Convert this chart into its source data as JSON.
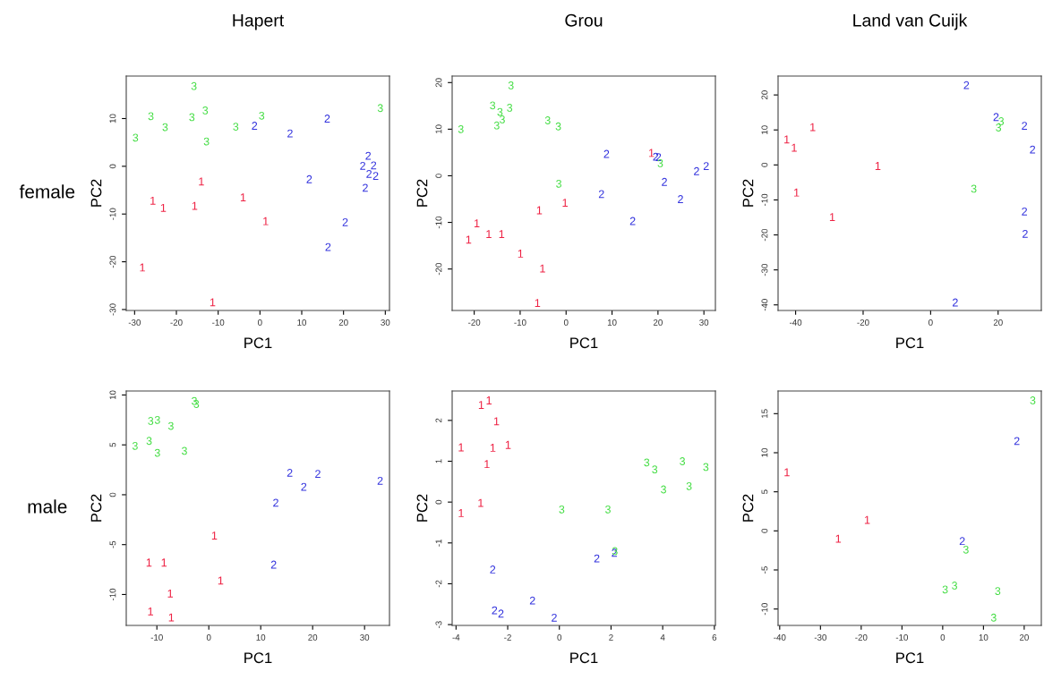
{
  "chart_data": [
    {
      "type": "scatter",
      "title": "Hapert",
      "xlabel": "PC1",
      "ylabel": "PC2",
      "annotations": [
        "female"
      ],
      "xlim": [
        -32,
        31
      ],
      "ylim": [
        -30.2,
        18.9
      ],
      "xticks": [
        -30,
        -20,
        -10,
        0,
        10,
        20,
        30
      ],
      "yticks": [
        -30,
        -20,
        -10,
        0,
        10
      ],
      "series": [
        {
          "color": "#ee2244",
          "x": [
            -14.0,
            -4.0,
            -25.6,
            -23.1,
            -15.6,
            1.4,
            -28.1,
            -11.3
          ],
          "values": [
            -3.2,
            -6.5,
            -7.2,
            -8.7,
            -8.3,
            -11.5,
            -21.2,
            -28.5
          ]
        },
        {
          "color": "#3333dd",
          "x": [
            -1.3,
            7.2,
            16.1,
            25.9,
            24.6,
            27.2,
            26.1,
            27.7,
            25.2,
            11.8,
            20.4,
            16.3
          ],
          "values": [
            8.5,
            6.9,
            10.0,
            2.2,
            0.1,
            0.2,
            -1.6,
            -2.0,
            -4.5,
            -2.7,
            -11.7,
            -16.9
          ]
        },
        {
          "color": "#44dd44",
          "x": [
            -15.8,
            -26.1,
            -22.7,
            -29.8,
            -16.3,
            -13.1,
            -12.8,
            -5.8,
            0.4,
            28.8
          ],
          "values": [
            16.8,
            10.5,
            8.2,
            6.0,
            10.3,
            11.7,
            5.2,
            8.3,
            10.6,
            12.2
          ]
        }
      ]
    },
    {
      "type": "scatter",
      "title": "Grou",
      "xlabel": "PC1",
      "ylabel": "PC2",
      "xlim": [
        -24.8,
        32.5
      ],
      "ylim": [
        -28.9,
        21.4
      ],
      "xticks": [
        -20,
        -10,
        0,
        10,
        20,
        30
      ],
      "yticks": [
        -20,
        -10,
        0,
        10,
        20
      ],
      "series": [
        {
          "color": "#ee2244",
          "x": [
            18.6,
            -0.2,
            -5.8,
            -19.4,
            -21.2,
            -16.8,
            -14.0,
            -9.9,
            -5.1,
            -6.2
          ],
          "values": [
            4.9,
            -5.8,
            -7.4,
            -10.2,
            -13.7,
            -12.5,
            -12.5,
            -16.7,
            -19.9,
            -27.3
          ]
        },
        {
          "color": "#3333dd",
          "x": [
            8.8,
            19.5,
            20.1,
            28.4,
            30.5,
            21.4,
            24.9,
            7.7,
            14.5
          ],
          "values": [
            4.7,
            4.1,
            4.0,
            1.0,
            2.1,
            -1.3,
            -5.0,
            -3.9,
            -9.7
          ]
        },
        {
          "color": "#44dd44",
          "x": [
            -22.9,
            -12.0,
            -16.0,
            -14.4,
            -13.9,
            -15.1,
            -12.3,
            -4.0,
            -1.7,
            20.5,
            -1.6
          ],
          "values": [
            10.0,
            19.4,
            15.1,
            13.7,
            12.1,
            10.8,
            14.6,
            11.9,
            10.6,
            2.7,
            -1.7
          ]
        }
      ]
    },
    {
      "type": "scatter",
      "title": "Land van Cuijk",
      "xlabel": "PC1",
      "ylabel": "PC2",
      "xlim": [
        -45.2,
        32.8
      ],
      "ylim": [
        -41.6,
        25.4
      ],
      "xticks": [
        -40,
        -20,
        0,
        20
      ],
      "yticks": [
        -40,
        -30,
        -20,
        -10,
        0,
        10,
        20
      ],
      "series": [
        {
          "color": "#ee2244",
          "x": [
            -42.6,
            -40.4,
            -34.9,
            -15.6,
            -39.7,
            -29.1
          ],
          "values": [
            7.3,
            4.9,
            10.8,
            -0.3,
            -7.9,
            -14.9
          ]
        },
        {
          "color": "#3333dd",
          "x": [
            10.6,
            19.4,
            27.8,
            30.2,
            27.8,
            28.0,
            7.3
          ],
          "values": [
            22.8,
            13.7,
            11.2,
            4.4,
            -13.3,
            -19.7,
            -39.3
          ]
        },
        {
          "color": "#44dd44",
          "x": [
            20.9,
            20.1,
            12.8
          ],
          "values": [
            12.5,
            10.7,
            -6.8
          ]
        }
      ]
    },
    {
      "type": "scatter",
      "xlabel": "PC1",
      "ylabel": "PC2",
      "annotations": [
        "male"
      ],
      "xlim": [
        -15.9,
        34.8
      ],
      "ylim": [
        -13.1,
        10.4
      ],
      "xticks": [
        -10,
        0,
        10,
        20,
        30
      ],
      "yticks": [
        -10,
        -5,
        0,
        5,
        10
      ],
      "series": [
        {
          "color": "#ee2244",
          "x": [
            1.1,
            -11.5,
            -8.6,
            2.3,
            -7.4,
            -11.2,
            -7.2
          ],
          "values": [
            -4.1,
            -6.8,
            -6.8,
            -8.6,
            -9.9,
            -11.7,
            -12.3
          ]
        },
        {
          "color": "#3333dd",
          "x": [
            15.6,
            21.0,
            18.3,
            33.0,
            12.9,
            12.5
          ],
          "values": [
            2.2,
            2.1,
            0.8,
            1.4,
            -0.8,
            -7.0
          ]
        },
        {
          "color": "#44dd44",
          "x": [
            -14.2,
            -11.2,
            -9.9,
            -7.3,
            -11.5,
            -9.9,
            -4.7,
            -2.8,
            -2.4
          ],
          "values": [
            4.9,
            7.4,
            7.5,
            6.9,
            5.4,
            4.2,
            4.4,
            9.4,
            9.1
          ]
        }
      ]
    },
    {
      "type": "scatter",
      "xlabel": "PC1",
      "ylabel": "PC2",
      "xlim": [
        -4.15,
        6.04
      ],
      "ylim": [
        -3.02,
        2.72
      ],
      "xticks": [
        -4,
        -2,
        0,
        2,
        4,
        6
      ],
      "yticks": [
        -3,
        -2,
        -1,
        0,
        1,
        2
      ],
      "series": [
        {
          "color": "#ee2244",
          "x": [
            -3.02,
            -2.72,
            -2.43,
            -3.8,
            -2.57,
            -1.98,
            -2.8,
            -3.04,
            -3.8
          ],
          "values": [
            2.38,
            2.49,
            1.98,
            1.34,
            1.33,
            1.4,
            0.93,
            -0.02,
            -0.27
          ]
        },
        {
          "color": "#3333dd",
          "x": [
            -2.58,
            1.45,
            2.13,
            -1.04,
            -2.51,
            -2.26,
            -0.2
          ],
          "values": [
            -1.65,
            -1.38,
            -1.24,
            -2.41,
            -2.65,
            -2.73,
            -2.83
          ]
        },
        {
          "color": "#44dd44",
          "x": [
            3.38,
            3.69,
            4.76,
            5.67,
            4.03,
            5.02,
            0.09,
            1.88,
            2.15
          ],
          "values": [
            0.97,
            0.8,
            1.0,
            0.86,
            0.31,
            0.39,
            -0.18,
            -0.18,
            -1.2
          ]
        }
      ]
    },
    {
      "type": "scatter",
      "xlabel": "PC1",
      "ylabel": "PC2",
      "xlim": [
        -40.4,
        24.2
      ],
      "ylim": [
        -12.1,
        17.9
      ],
      "xticks": [
        -40,
        -30,
        -20,
        -10,
        0,
        10,
        20
      ],
      "yticks": [
        -10,
        -5,
        0,
        5,
        10,
        15
      ],
      "series": [
        {
          "color": "#ee2244",
          "x": [
            -38.2,
            -18.5,
            -25.6
          ],
          "values": [
            7.5,
            1.4,
            -1.0
          ]
        },
        {
          "color": "#3333dd",
          "x": [
            18.2,
            4.8
          ],
          "values": [
            11.5,
            -1.3
          ]
        },
        {
          "color": "#44dd44",
          "x": [
            22.1,
            5.7,
            0.6,
            2.9,
            13.5,
            12.5
          ],
          "values": [
            16.7,
            -2.4,
            -7.5,
            -7.0,
            -7.7,
            -11.1
          ]
        }
      ]
    }
  ]
}
